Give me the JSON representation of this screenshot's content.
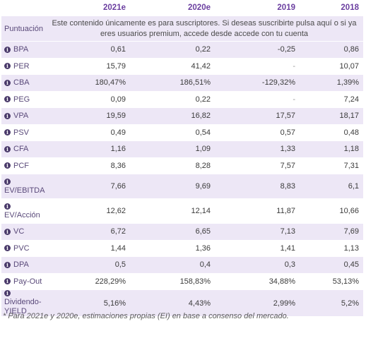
{
  "columns": [
    "2021e",
    "2020e",
    "2019",
    "2018"
  ],
  "subscriber_row": {
    "label": "Puntuación",
    "message": "Este contenido únicamente es para suscriptores. Si deseas suscribirte pulsa aquí o si ya eres usuarios premium, accede desde accede con tu cuenta"
  },
  "rows": [
    {
      "label": "BPA",
      "values": [
        "0,61",
        "0,22",
        "-0,25",
        "0,86"
      ]
    },
    {
      "label": "PER",
      "values": [
        "15,79",
        "41,42",
        "-",
        "10,07"
      ]
    },
    {
      "label": "CBA",
      "values": [
        "180,47%",
        "186,51%",
        "-129,32%",
        "1,39%"
      ]
    },
    {
      "label": "PEG",
      "values": [
        "0,09",
        "0,22",
        "-",
        "7,24"
      ]
    },
    {
      "label": "VPA",
      "values": [
        "19,59",
        "16,82",
        "17,57",
        "18,17"
      ]
    },
    {
      "label": "PSV",
      "values": [
        "0,49",
        "0,54",
        "0,57",
        "0,48"
      ]
    },
    {
      "label": "CFA",
      "values": [
        "1,16",
        "1,09",
        "1,33",
        "1,18"
      ]
    },
    {
      "label": "PCF",
      "values": [
        "8,36",
        "8,28",
        "7,57",
        "7,31"
      ]
    },
    {
      "label": "EV/EBITDA",
      "values": [
        "7,66",
        "9,69",
        "8,83",
        "6,1"
      ]
    },
    {
      "label": "EV/Acción",
      "values": [
        "12,62",
        "12,14",
        "11,87",
        "10,66"
      ]
    },
    {
      "label": "VC",
      "values": [
        "6,72",
        "6,65",
        "7,13",
        "7,69"
      ]
    },
    {
      "label": "PVC",
      "values": [
        "1,44",
        "1,36",
        "1,41",
        "1,13"
      ]
    },
    {
      "label": "DPA",
      "values": [
        "0,5",
        "0,4",
        "0,3",
        "0,45"
      ]
    },
    {
      "label": "Pay-Out",
      "values": [
        "228,29%",
        "158,83%",
        "34,88%",
        "53,13%"
      ]
    },
    {
      "label": "Dividendo-YIELD",
      "values": [
        "5,16%",
        "4,43%",
        "2,99%",
        "5,2%"
      ]
    }
  ],
  "footnote": "* Para 2021e y 2020e, estimaciones propias (EI) en base a consenso del mercado.",
  "icons": {
    "info": "info-icon"
  },
  "colors": {
    "header": "#6b3fa0",
    "stripe": "#ede7f6"
  }
}
